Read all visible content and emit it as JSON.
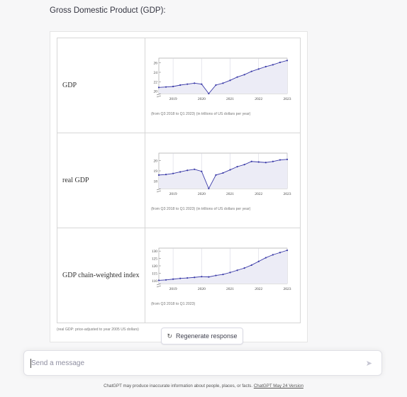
{
  "heading": "Gross Domestic Product (GDP):",
  "rows": [
    {
      "label": "GDP",
      "caption": "(from Q3 2018 to Q1 2023)  (in trillions of US dollars per year)"
    },
    {
      "label": "real GDP",
      "caption": "(from Q3 2018 to Q1 2023)  (in trillions of US dollars per year)"
    },
    {
      "label": "GDP chain-weighted index",
      "caption": "(from Q3 2018 to Q1 2023)"
    }
  ],
  "footnote": "(real GDP: price-adjusted to year 2005 US dollars)",
  "regenerate_label": "Regenerate response",
  "input_placeholder": "Send a message",
  "disclaimer_text": "ChatGPT may produce inaccurate information about people, places, or facts. ",
  "disclaimer_link": "ChatGPT May 24 Version",
  "colors": {
    "line": "#3a3aa8",
    "fill": "#ececf6",
    "grid": "#cfcfdd"
  },
  "chart_data": [
    {
      "type": "area",
      "title": "GDP",
      "x_tick_labels": [
        "2019",
        "2020",
        "2021",
        "2022",
        "2023"
      ],
      "y_tick_labels": [
        "20",
        "22",
        "24",
        "26"
      ],
      "ylim": [
        19.5,
        27
      ],
      "x": [
        2018.5,
        2018.75,
        2019.0,
        2019.25,
        2019.5,
        2019.75,
        2020.0,
        2020.25,
        2020.5,
        2020.75,
        2021.0,
        2021.25,
        2021.5,
        2021.75,
        2022.0,
        2022.25,
        2022.5,
        2022.75,
        2023.0
      ],
      "values": [
        20.8,
        20.9,
        21.0,
        21.3,
        21.5,
        21.7,
        21.5,
        19.5,
        21.3,
        21.7,
        22.3,
        23.0,
        23.5,
        24.2,
        24.7,
        25.2,
        25.6,
        26.1,
        26.5
      ]
    },
    {
      "type": "area",
      "title": "real GDP",
      "x_tick_labels": [
        "2019",
        "2020",
        "2021",
        "2022",
        "2023"
      ],
      "y_tick_labels": [
        "18",
        "19",
        "20"
      ],
      "ylim": [
        17.3,
        20.7
      ],
      "x": [
        2018.5,
        2018.75,
        2019.0,
        2019.25,
        2019.5,
        2019.75,
        2020.0,
        2020.25,
        2020.5,
        2020.75,
        2021.0,
        2021.25,
        2021.5,
        2021.75,
        2022.0,
        2022.25,
        2022.5,
        2022.75,
        2023.0
      ],
      "values": [
        18.6,
        18.65,
        18.75,
        18.9,
        19.05,
        19.15,
        18.95,
        17.3,
        18.6,
        18.8,
        19.1,
        19.4,
        19.6,
        19.9,
        19.85,
        19.8,
        19.9,
        20.05,
        20.1
      ]
    },
    {
      "type": "area",
      "title": "GDP chain-weighted index",
      "x_tick_labels": [
        "2019",
        "2020",
        "2021",
        "2022",
        "2023"
      ],
      "y_tick_labels": [
        "110",
        "115",
        "120",
        "125",
        "130"
      ],
      "ylim": [
        108,
        132
      ],
      "x": [
        2018.5,
        2018.75,
        2019.0,
        2019.25,
        2019.5,
        2019.75,
        2020.0,
        2020.25,
        2020.5,
        2020.75,
        2021.0,
        2021.25,
        2021.5,
        2021.75,
        2022.0,
        2022.25,
        2022.5,
        2022.75,
        2023.0
      ],
      "values": [
        110.2,
        110.5,
        111.0,
        111.5,
        111.8,
        112.2,
        112.7,
        112.5,
        113.5,
        114.2,
        115.5,
        117.0,
        118.5,
        120.5,
        123.0,
        125.5,
        127.5,
        129.0,
        130.5
      ]
    }
  ]
}
